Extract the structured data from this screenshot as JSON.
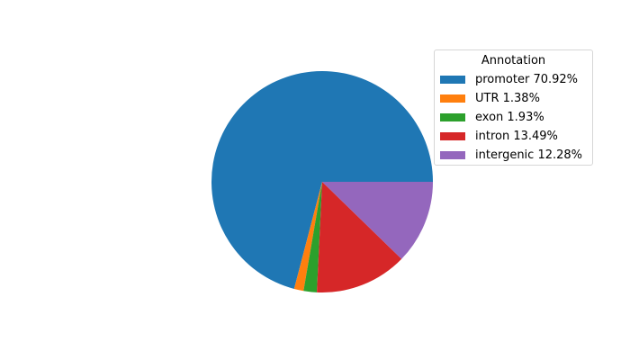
{
  "chart_data": {
    "type": "pie",
    "title": "",
    "start_angle_deg": 0,
    "direction": "counterclockwise",
    "slices": [
      {
        "label": "promoter 70.92%",
        "category": "promoter",
        "value": 70.92,
        "color": "#1f77b4"
      },
      {
        "label": "UTR 1.38%",
        "category": "UTR",
        "value": 1.38,
        "color": "#ff7f0e"
      },
      {
        "label": "exon 1.93%",
        "category": "exon",
        "value": 1.93,
        "color": "#2ca02c"
      },
      {
        "label": "intron 13.49%",
        "category": "intron",
        "value": 13.49,
        "color": "#d62728"
      },
      {
        "label": "intergenic 12.28%",
        "category": "intergenic",
        "value": 12.28,
        "color": "#9467bd"
      }
    ],
    "legend": {
      "title": "Annotation",
      "placement": "upper-right"
    }
  }
}
